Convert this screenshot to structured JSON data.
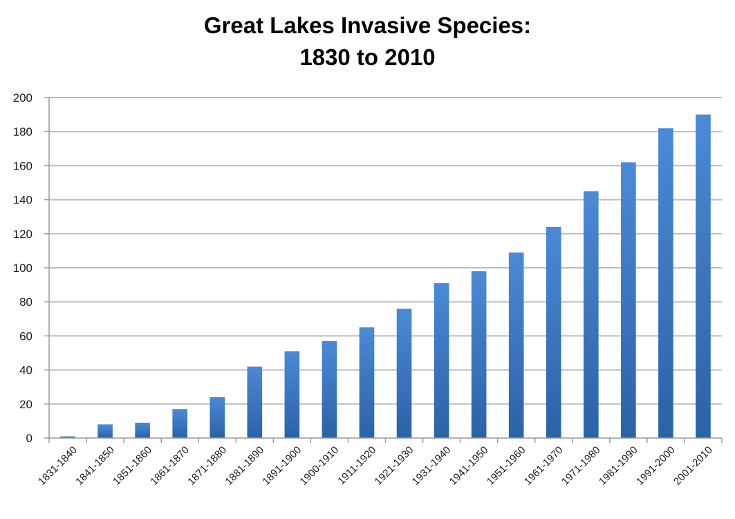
{
  "chart_data": {
    "type": "bar",
    "title": "Great Lakes Invasive Species:",
    "subtitle": "1830 to 2010",
    "xlabel": "",
    "ylabel": "",
    "categories": [
      "1831-1840",
      "1841-1850",
      "1851-1860",
      "1861-1870",
      "1871-1880",
      "1881-1890",
      "1891-1900",
      "1900-1910",
      "1911-1920",
      "1921-1930",
      "1931-1940",
      "1941-1950",
      "1951-1960",
      "1961-1970",
      "1971-1980",
      "1981-1990",
      "1991-2000",
      "2001-2010"
    ],
    "values": [
      1,
      8,
      9,
      17,
      24,
      42,
      51,
      57,
      65,
      76,
      91,
      98,
      109,
      124,
      145,
      162,
      182,
      190
    ],
    "ylim": [
      0,
      200
    ],
    "yticks": [
      0,
      20,
      40,
      60,
      80,
      100,
      120,
      140,
      160,
      180,
      200
    ],
    "grid": true,
    "legend": "none",
    "bar_color": "#3a78c2"
  }
}
